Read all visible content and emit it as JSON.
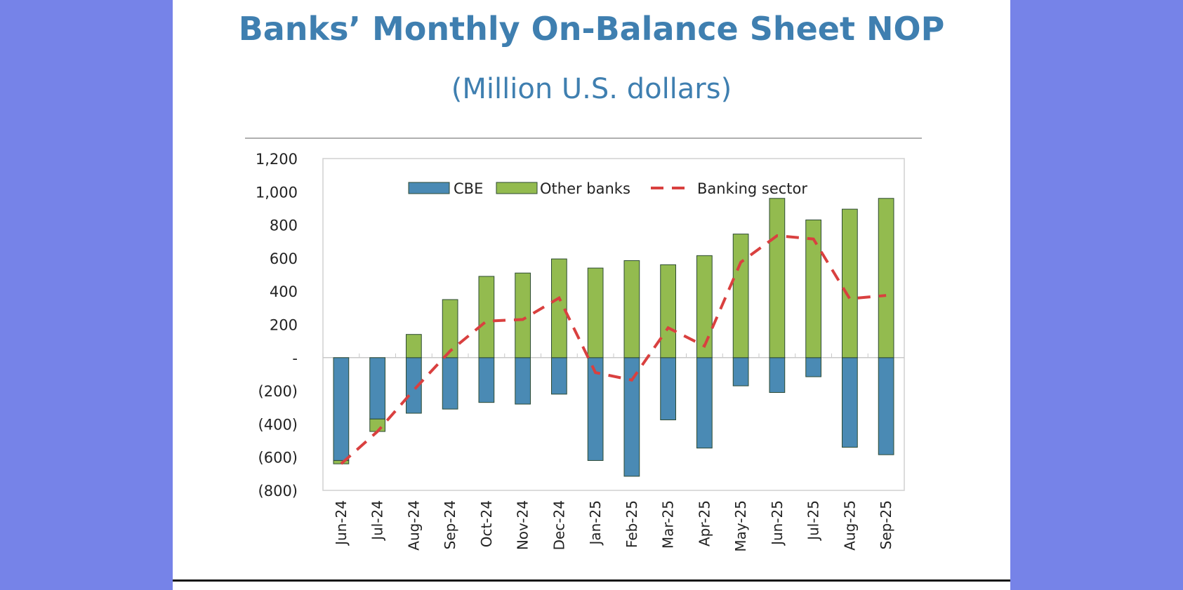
{
  "chart_data": {
    "type": "bar",
    "title": "Banks’ Monthly On-Balance Sheet NOP",
    "subtitle": "(Million U.S. dollars)",
    "xlabel": "",
    "ylabel": "",
    "ylim": [
      -800,
      1200
    ],
    "yticks": [
      1200,
      1000,
      800,
      600,
      400,
      200,
      0,
      -200,
      -400,
      -600,
      -800
    ],
    "ytick_labels": [
      "1,200",
      "1,000",
      "800",
      "600",
      "400",
      "200",
      "-",
      "(200)",
      "(400)",
      "(600)",
      "(800)"
    ],
    "legend_position": "top",
    "categories": [
      "Jun-24",
      "Jul-24",
      "Aug-24",
      "Sep-24",
      "Oct-24",
      "Nov-24",
      "Dec-24",
      "Jan-25",
      "Feb-25",
      "Mar-25",
      "Apr-25",
      "May-25",
      "Jun-25",
      "Jul-25",
      "Aug-25",
      "Sep-25"
    ],
    "series": [
      {
        "name": "CBE",
        "type": "stacked-bar",
        "color": "#4a8ab4",
        "values": [
          -620,
          -370,
          -335,
          -310,
          -270,
          -280,
          -220,
          -620,
          -715,
          -375,
          -545,
          -170,
          -210,
          -115,
          -540,
          -585
        ]
      },
      {
        "name": "Other banks",
        "type": "stacked-bar",
        "color": "#93bb4f",
        "values": [
          -20,
          -75,
          140,
          350,
          490,
          510,
          595,
          540,
          585,
          560,
          615,
          745,
          960,
          830,
          895,
          960
        ]
      },
      {
        "name": "Banking sector",
        "type": "dashed-line",
        "color": "#d9403f",
        "values": [
          -640,
          -445,
          -195,
          40,
          220,
          230,
          360,
          -90,
          -135,
          180,
          70,
          575,
          735,
          715,
          355,
          375
        ]
      }
    ]
  }
}
